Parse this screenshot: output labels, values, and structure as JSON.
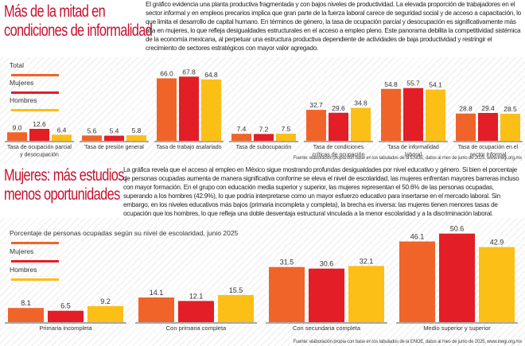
{
  "colors": {
    "total": "#f0642a",
    "mujeres": "#e31e26",
    "hombres": "#fbbf16",
    "headline": "#c8102e",
    "axis": "#555555"
  },
  "section1": {
    "headline_line1": "Más de la mitad en",
    "headline_line2": "condiciones de informalidad",
    "paragraph": "El gráfico evidencia una planta productiva fragmentada y con bajos niveles de productividad. La elevada proporción de trabajadores en el sector informal y en empleos precarios implica que gran parte de la fuerza laboral carece de seguridad social y de acceso a capacitación, lo que limita el desarrollo de capital humano. En términos de género, la tasa de ocupación parcial y desocupación es significativamente más alta en mujeres, lo que refleja desigualdades estructurales en el acceso a empleo pleno. Este panorama debilita la competitividad sistémica de la economía mexicana, al perpetuar una estructura productiva dependiente de actividades de baja productividad y restringir el crecimiento de sectores estratégicos con mayor valor agregado.",
    "source": "Fuente: elaboración propia con base en los tabulados de la ENOE, datos al mes de junio de 2025, www.inegi.org.mx"
  },
  "section2": {
    "headline_line1": "Mujeres: más estudios,",
    "headline_line2": "menos oportunidades",
    "paragraph": "La gráfica revela que el acceso al empleo en México sigue mostrando profundas desigualdades por nivel educativo y género. Si bien el porcentaje de personas ocupadas aumenta de manera significativa conforme se eleva el nivel de escolaridad, las mujeres enfrentan mayores barreras incluso con mayor formación. En el grupo con educación media superior y superior, las mujeres representan el 50.6% de las personas ocupadas, superando a los hombres (42.9%), lo que podría interpretarse como un mayor esfuerzo educativo para insertarse en el mercado laboral. Sin embargo, en los niveles educativos más bajos (primaria incompleta y completa), la brecha es inversa: las mujeres tienen menores tasas de ocupación que los hombres, lo que refleja una doble desventaja estructural vinculada a la menor escolaridad y a la discriminación laboral.",
    "source": "Fuente: elaboración propia con base en los tabulados de la ENOE, datos al mes de junio de 2025, www.inegi.org.mx"
  },
  "chart_data": [
    {
      "type": "bar",
      "title": "",
      "xlabel": "",
      "ylabel": "",
      "ylim": [
        0,
        70
      ],
      "grid": false,
      "legend": {
        "placement": "top-left",
        "entries": [
          "Total",
          "Mujeres",
          "Hombres"
        ]
      },
      "categories": [
        [
          "Tasa de ocupación parcial",
          "y desocupación"
        ],
        [
          "Tasa de presión general"
        ],
        [
          "Tasa de trabajo asalariado"
        ],
        [
          "Tasa de subocupación"
        ],
        [
          "Tasa de condiciones",
          "críticas de ocupación"
        ],
        [
          "Tasa de informalidad",
          "laboral"
        ],
        [
          "Tasa de ocupación en el",
          "sector informal"
        ]
      ],
      "series": [
        {
          "name": "Total",
          "values": [
            9.0,
            5.6,
            66.0,
            7.4,
            32.7,
            54.8,
            28.8
          ]
        },
        {
          "name": "Mujeres",
          "values": [
            12.6,
            5.4,
            67.8,
            7.2,
            29.6,
            55.7,
            29.4
          ]
        },
        {
          "name": "Hombres",
          "values": [
            6.4,
            5.8,
            64.8,
            7.5,
            34.8,
            54.1,
            28.5
          ]
        }
      ]
    },
    {
      "type": "bar",
      "title": "Porcentaje de personas ocupadas según su nivel de escolaridad, junio 2025",
      "xlabel": "",
      "ylabel": "",
      "ylim": [
        0,
        55
      ],
      "grid": false,
      "legend": {
        "placement": "top-left",
        "entries": [
          "Total",
          "Mujeres",
          "Hombres"
        ]
      },
      "categories": [
        [
          "Primaria incompleta"
        ],
        [
          "Con primaria completa"
        ],
        [
          "Con secundaria completa"
        ],
        [
          "Medio superior y superior"
        ]
      ],
      "series": [
        {
          "name": "Total",
          "values": [
            8.1,
            14.1,
            31.5,
            46.1
          ]
        },
        {
          "name": "Mujeres",
          "values": [
            6.5,
            12.1,
            30.6,
            50.6
          ]
        },
        {
          "name": "Hombres",
          "values": [
            9.2,
            15.5,
            32.1,
            42.9
          ]
        }
      ]
    }
  ]
}
